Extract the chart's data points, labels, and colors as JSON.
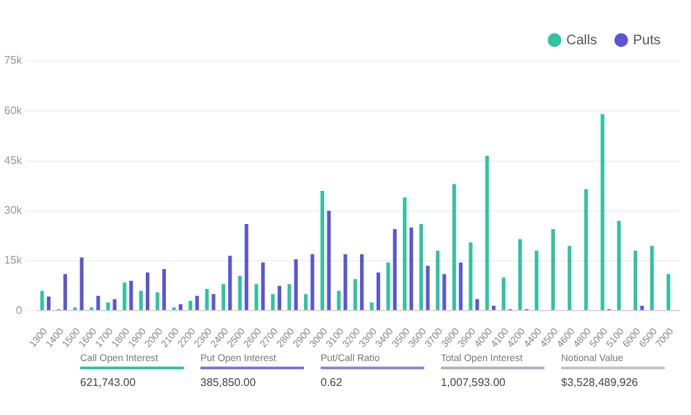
{
  "chart_data": {
    "type": "bar",
    "categories": [
      "1300",
      "1400",
      "1500",
      "1600",
      "1700",
      "1800",
      "1900",
      "2000",
      "2100",
      "2200",
      "2300",
      "2400",
      "2500",
      "2600",
      "2700",
      "2800",
      "2900",
      "3000",
      "3100",
      "3200",
      "3300",
      "3400",
      "3500",
      "3600",
      "3700",
      "3800",
      "3900",
      "4000",
      "4100",
      "4200",
      "4400",
      "4500",
      "4600",
      "4800",
      "5000",
      "5100",
      "6000",
      "6500",
      "7000"
    ],
    "series": [
      {
        "name": "Calls",
        "color": "#2ec4a0",
        "values": [
          6000,
          500,
          1000,
          1000,
          2500,
          8500,
          6000,
          5500,
          1000,
          3000,
          6500,
          8000,
          10500,
          8000,
          5000,
          8000,
          5000,
          36000,
          6000,
          9500,
          2500,
          14500,
          34000,
          26000,
          18000,
          38000,
          20500,
          46500,
          10000,
          21500,
          18000,
          24500,
          19500,
          36500,
          59000,
          27000,
          18000,
          19500,
          11000
        ]
      },
      {
        "name": "Puts",
        "color": "#5b55d6",
        "values": [
          4300,
          11000,
          16000,
          4500,
          3500,
          9000,
          11500,
          12500,
          2000,
          4500,
          5000,
          16500,
          26000,
          14500,
          7500,
          15500,
          17000,
          30000,
          17000,
          17000,
          11500,
          24500,
          25000,
          13500,
          11000,
          14500,
          3500,
          1500,
          500,
          500,
          0,
          0,
          0,
          0,
          500,
          0,
          1500,
          0,
          0
        ]
      }
    ],
    "ylim": [
      0,
      75000
    ],
    "yticks": [
      {
        "value": 0,
        "label": "0"
      },
      {
        "value": 15000,
        "label": "15k"
      },
      {
        "value": 30000,
        "label": "30k"
      },
      {
        "value": 45000,
        "label": "45k"
      },
      {
        "value": 60000,
        "label": "60k"
      },
      {
        "value": 75000,
        "label": "75k"
      }
    ],
    "grid": "y",
    "legend": "top right",
    "annotations": [
      "Call Open Interest",
      "621,743.00",
      "Put Open Interest",
      "385,850.00",
      "Put/Call Ratio",
      "0.62",
      "Total Open Interest",
      "1,007,593.00",
      "Notional Value",
      "$3,528,489,926"
    ]
  }
}
